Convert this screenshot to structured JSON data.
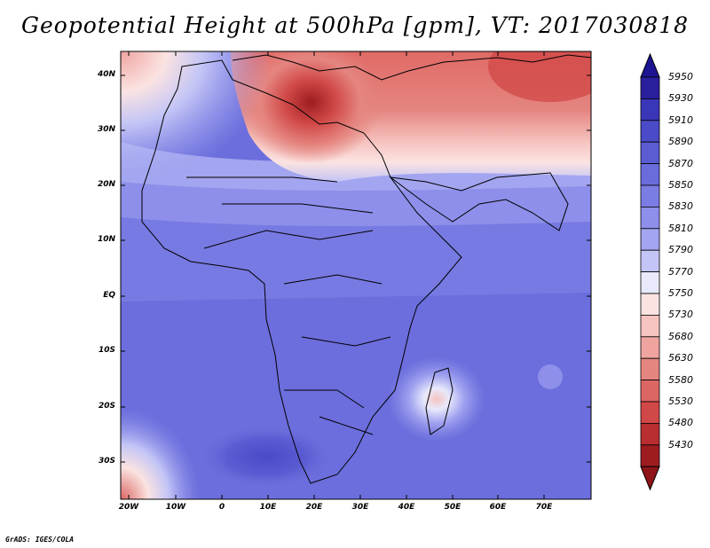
{
  "title": "Geopotential Height at 500hPa [gpm], VT: 2017030818",
  "credit": "GrADS: IGES/COLA",
  "axes": {
    "lat_labels": [
      "40N",
      "30N",
      "20N",
      "10N",
      "EQ",
      "10S",
      "20S",
      "30S"
    ],
    "lon_labels": [
      "20W",
      "10W",
      "0",
      "10E",
      "20E",
      "30E",
      "40E",
      "50E",
      "60E",
      "70E"
    ]
  },
  "colorbar": {
    "labels": [
      "5950",
      "5930",
      "5910",
      "5890",
      "5870",
      "5850",
      "5830",
      "5810",
      "5790",
      "5770",
      "5750",
      "5730",
      "5680",
      "5630",
      "5580",
      "5530",
      "5480",
      "5430"
    ],
    "colors": [
      "#2a1f9c",
      "#3a36b8",
      "#4b4ac8",
      "#5b5cd2",
      "#6a6cdc",
      "#7b7de4",
      "#8d8fea",
      "#a3a5f0",
      "#c3c5f6",
      "#e8e9fb",
      "#fbe3e1",
      "#f6c4c0",
      "#efa4a0",
      "#e58580",
      "#db6663",
      "#d04847",
      "#b92e30",
      "#9c1c20"
    ],
    "top_color": "#1c1490",
    "bottom_color": "#8e1418"
  },
  "colors": {
    "frame": "#000000",
    "ocean_base": "#6c6edd",
    "border": "#000000"
  }
}
